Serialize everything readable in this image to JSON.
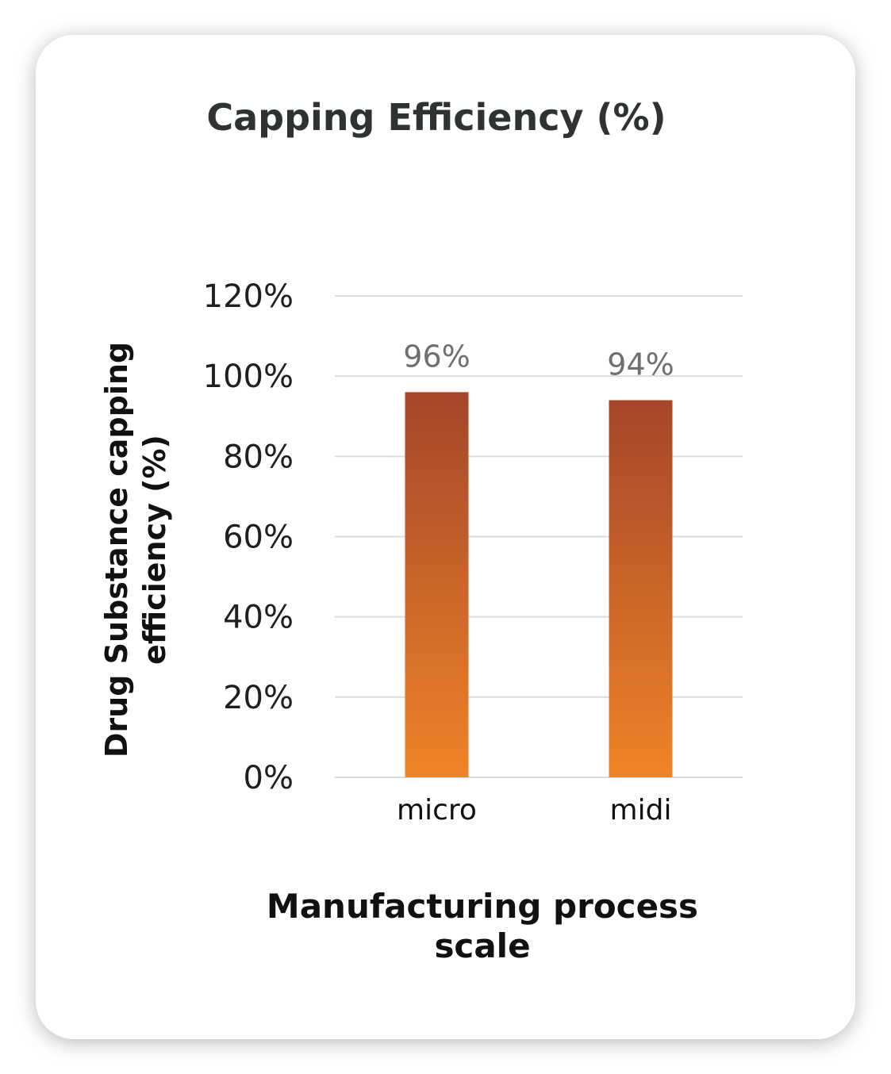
{
  "chart_data": {
    "type": "bar",
    "title": "Capping Efficiency (%)",
    "categories": [
      "micro",
      "midi"
    ],
    "values": [
      96,
      94
    ],
    "data_labels": [
      "96%",
      "94%"
    ],
    "xlabel": [
      "Manufacturing process",
      "scale"
    ],
    "ylabel": [
      "Drug Substance  capping",
      "efficiency (%)"
    ],
    "ylim": [
      0,
      120
    ],
    "yticks": [
      0,
      20,
      40,
      60,
      80,
      100,
      120
    ],
    "ytick_labels": [
      "0%",
      "20%",
      "40%",
      "60%",
      "80%",
      "100%",
      "120%"
    ],
    "grid": true,
    "legend": "none",
    "colors": {
      "bar_top": "#a6452a",
      "bar_bottom": "#ef8427",
      "grid": "#dcdcdc",
      "title": "#2e3233"
    }
  }
}
